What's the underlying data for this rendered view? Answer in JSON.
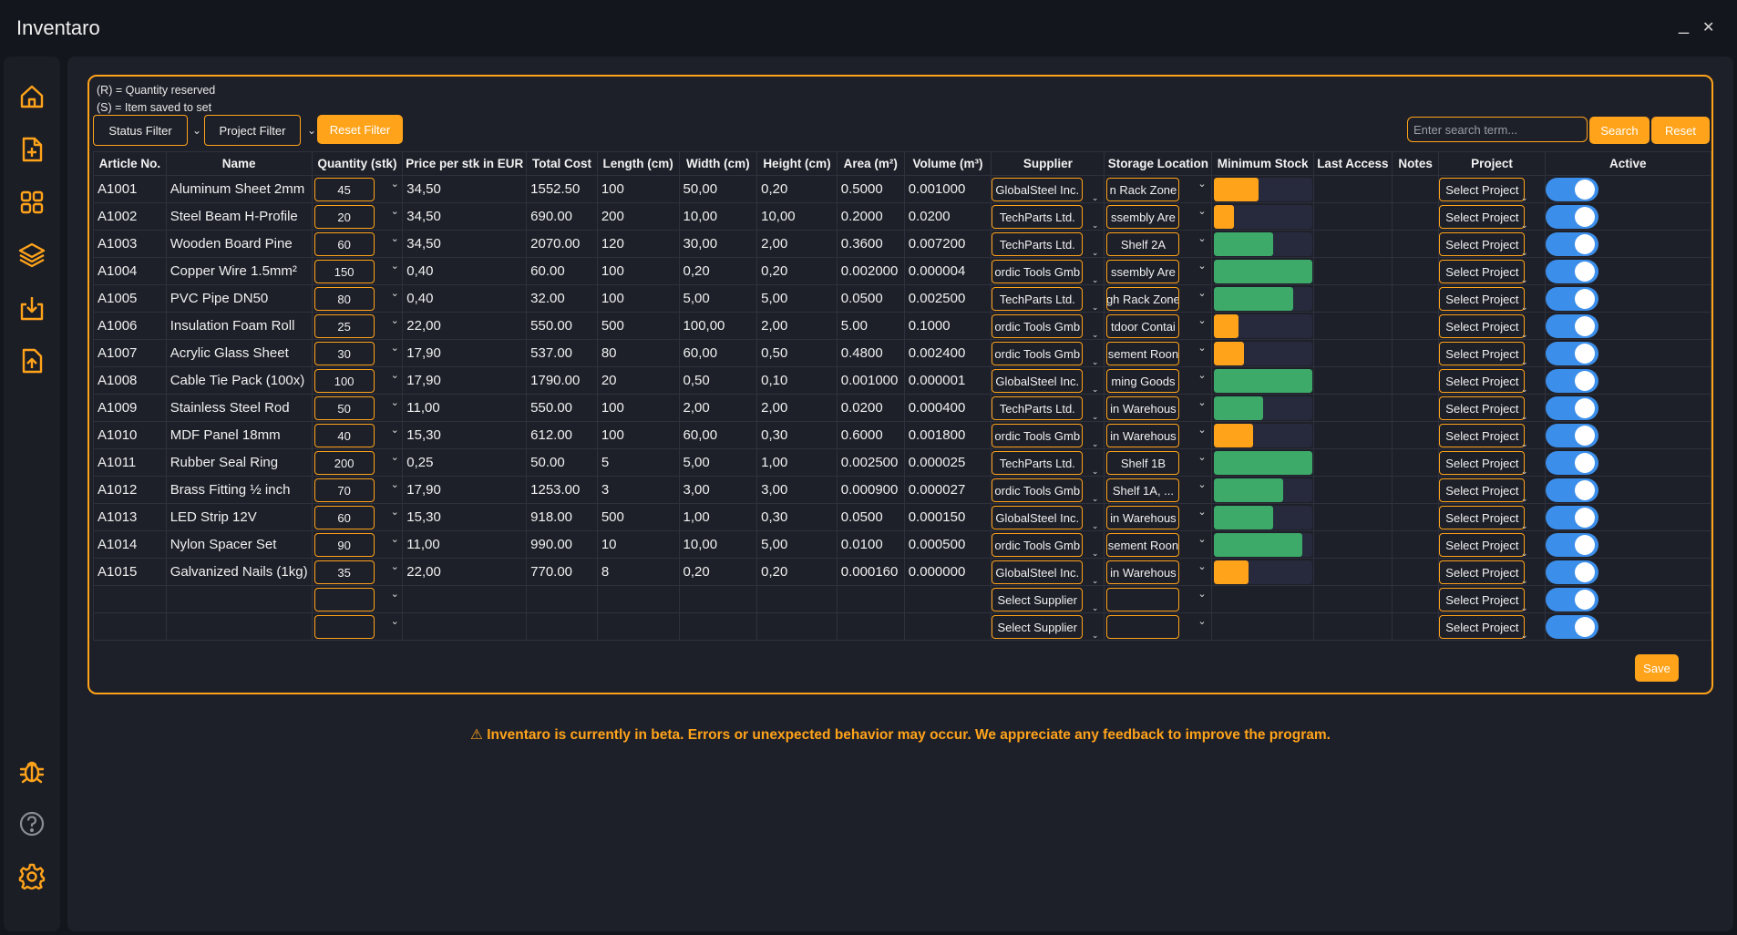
{
  "app": {
    "title": "Inventaro"
  },
  "window": {
    "minimize": "_",
    "close": "✕"
  },
  "sidebar": {
    "items": [
      {
        "name": "home-icon"
      },
      {
        "name": "add-file-icon"
      },
      {
        "name": "grid-icon"
      },
      {
        "name": "layers-icon"
      },
      {
        "name": "import-icon"
      },
      {
        "name": "export-icon"
      },
      {
        "name": "bug-icon"
      },
      {
        "name": "help-icon"
      },
      {
        "name": "settings-icon"
      }
    ]
  },
  "legend": {
    "line1": "(R) = Quantity reserved",
    "line2": "(S) = Item saved to set"
  },
  "toolbar": {
    "status_filter": "Status Filter",
    "project_filter": "Project Filter",
    "reset_filter": "Reset Filter",
    "search_placeholder": "Enter search term...",
    "search": "Search",
    "reset": "Reset"
  },
  "columns": [
    "Article No.",
    "Name",
    "Quantity (stk)",
    "Price per stk in EUR",
    "Total Cost",
    "Length (cm)",
    "Width (cm)",
    "Height (cm)",
    "Area (m²)",
    "Volume (m³)",
    "Supplier",
    "Storage Location",
    "Minimum Stock",
    "Last Access",
    "Notes",
    "Project",
    "Active"
  ],
  "rows": [
    {
      "article": "A1001",
      "name": "Aluminum Sheet 2mm",
      "qty": "45",
      "price": "34,50",
      "total": "1552.50",
      "length": "100",
      "width": "50,00",
      "height": "0,20",
      "area": "0.5000",
      "volume": "0.001000",
      "supplier": "GlobalSteel Inc.",
      "location": "n Rack Zone",
      "stock": 0.45,
      "stock_color": "#ffa31a",
      "project": "Select Project",
      "active": true
    },
    {
      "article": "A1002",
      "name": "Steel Beam H-Profile",
      "qty": "20",
      "price": "34,50",
      "total": "690.00",
      "length": "200",
      "width": "10,00",
      "height": "10,00",
      "area": "0.2000",
      "volume": "0.0200",
      "supplier": "TechParts Ltd.",
      "location": "ssembly Are",
      "stock": 0.2,
      "stock_color": "#ffa31a",
      "project": "Select Project",
      "active": true
    },
    {
      "article": "A1003",
      "name": "Wooden Board Pine",
      "qty": "60",
      "price": "34,50",
      "total": "2070.00",
      "length": "120",
      "width": "30,00",
      "height": "2,00",
      "area": "0.3600",
      "volume": "0.007200",
      "supplier": "TechParts Ltd.",
      "location": "Shelf 2A",
      "stock": 0.6,
      "stock_color": "#3daa6a",
      "project": "Select Project",
      "active": true
    },
    {
      "article": "A1004",
      "name": "Copper Wire 1.5mm²",
      "qty": "150",
      "price": "0,40",
      "total": "60.00",
      "length": "100",
      "width": "0,20",
      "height": "0,20",
      "area": "0.002000",
      "volume": "0.000004",
      "supplier": "ordic Tools Gmb",
      "location": "ssembly Are",
      "stock": 1.0,
      "stock_color": "#3daa6a",
      "project": "Select Project",
      "active": true
    },
    {
      "article": "A1005",
      "name": "PVC Pipe DN50",
      "qty": "80",
      "price": "0,40",
      "total": "32.00",
      "length": "100",
      "width": "5,00",
      "height": "5,00",
      "area": "0.0500",
      "volume": "0.002500",
      "supplier": "TechParts Ltd.",
      "location": "gh Rack Zone",
      "stock": 0.8,
      "stock_color": "#3daa6a",
      "project": "Select Project",
      "active": true
    },
    {
      "article": "A1006",
      "name": "Insulation Foam Roll",
      "qty": "25",
      "price": "22,00",
      "total": "550.00",
      "length": "500",
      "width": "100,00",
      "height": "2,00",
      "area": "5.00",
      "volume": "0.1000",
      "supplier": "ordic Tools Gmb",
      "location": "tdoor Contai",
      "stock": 0.25,
      "stock_color": "#ffa31a",
      "project": "Select Project",
      "active": true
    },
    {
      "article": "A1007",
      "name": "Acrylic Glass Sheet",
      "qty": "30",
      "price": "17,90",
      "total": "537.00",
      "length": "80",
      "width": "60,00",
      "height": "0,50",
      "area": "0.4800",
      "volume": "0.002400",
      "supplier": "ordic Tools Gmb",
      "location": "sement Roon",
      "stock": 0.3,
      "stock_color": "#ffa31a",
      "project": "Select Project",
      "active": true
    },
    {
      "article": "A1008",
      "name": "Cable Tie Pack (100x)",
      "qty": "100",
      "price": "17,90",
      "total": "1790.00",
      "length": "20",
      "width": "0,50",
      "height": "0,10",
      "area": "0.001000",
      "volume": "0.000001",
      "supplier": "GlobalSteel Inc.",
      "location": "ming Goods",
      "stock": 1.0,
      "stock_color": "#3daa6a",
      "project": "Select Project",
      "active": true
    },
    {
      "article": "A1009",
      "name": "Stainless Steel Rod",
      "qty": "50",
      "price": "11,00",
      "total": "550.00",
      "length": "100",
      "width": "2,00",
      "height": "2,00",
      "area": "0.0200",
      "volume": "0.000400",
      "supplier": "TechParts Ltd.",
      "location": "in Warehous",
      "stock": 0.5,
      "stock_color": "#3daa6a",
      "project": "Select Project",
      "active": true
    },
    {
      "article": "A1010",
      "name": "MDF Panel 18mm",
      "qty": "40",
      "price": "15,30",
      "total": "612.00",
      "length": "100",
      "width": "60,00",
      "height": "0,30",
      "area": "0.6000",
      "volume": "0.001800",
      "supplier": "ordic Tools Gmb",
      "location": "in Warehous",
      "stock": 0.4,
      "stock_color": "#ffa31a",
      "project": "Select Project",
      "active": true
    },
    {
      "article": "A1011",
      "name": "Rubber Seal Ring",
      "qty": "200",
      "price": "0,25",
      "total": "50.00",
      "length": "5",
      "width": "5,00",
      "height": "1,00",
      "area": "0.002500",
      "volume": "0.000025",
      "supplier": "TechParts Ltd.",
      "location": "Shelf 1B",
      "stock": 1.0,
      "stock_color": "#3daa6a",
      "project": "Select Project",
      "active": true
    },
    {
      "article": "A1012",
      "name": "Brass Fitting ½ inch",
      "qty": "70",
      "price": "17,90",
      "total": "1253.00",
      "length": "3",
      "width": "3,00",
      "height": "3,00",
      "area": "0.000900",
      "volume": "0.000027",
      "supplier": "ordic Tools Gmb",
      "location": "Shelf 1A, ...",
      "stock": 0.7,
      "stock_color": "#3daa6a",
      "project": "Select Project",
      "active": true
    },
    {
      "article": "A1013",
      "name": "LED Strip 12V",
      "qty": "60",
      "price": "15,30",
      "total": "918.00",
      "length": "500",
      "width": "1,00",
      "height": "0,30",
      "area": "0.0500",
      "volume": "0.000150",
      "supplier": "GlobalSteel Inc.",
      "location": "in Warehous",
      "stock": 0.6,
      "stock_color": "#3daa6a",
      "project": "Select Project",
      "active": true
    },
    {
      "article": "A1014",
      "name": "Nylon Spacer Set",
      "qty": "90",
      "price": "11,00",
      "total": "990.00",
      "length": "10",
      "width": "10,00",
      "height": "5,00",
      "area": "0.0100",
      "volume": "0.000500",
      "supplier": "ordic Tools Gmb",
      "location": "sement Roon",
      "stock": 0.9,
      "stock_color": "#3daa6a",
      "project": "Select Project",
      "active": true
    },
    {
      "article": "A1015",
      "name": "Galvanized Nails (1kg)",
      "qty": "35",
      "price": "22,00",
      "total": "770.00",
      "length": "8",
      "width": "0,20",
      "height": "0,20",
      "area": "0.000160",
      "volume": "0.000000",
      "supplier": "GlobalSteel Inc.",
      "location": "in Warehous",
      "stock": 0.35,
      "stock_color": "#ffa31a",
      "project": "Select Project",
      "active": true
    },
    {
      "article": "",
      "name": "",
      "qty": "",
      "price": "",
      "total": "",
      "length": "",
      "width": "",
      "height": "",
      "area": "",
      "volume": "",
      "supplier": "Select Supplier",
      "location": "",
      "stock": null,
      "stock_color": "",
      "project": "Select Project",
      "active": true
    },
    {
      "article": "",
      "name": "",
      "qty": "",
      "price": "",
      "total": "",
      "length": "",
      "width": "",
      "height": "",
      "area": "",
      "volume": "",
      "supplier": "Select Supplier",
      "location": "",
      "stock": null,
      "stock_color": "",
      "project": "Select Project",
      "active": true
    }
  ],
  "save": "Save",
  "beta_notice": "⚠ Inventaro is currently in beta. Errors or unexpected behavior may occur. We appreciate any feedback to improve the program."
}
